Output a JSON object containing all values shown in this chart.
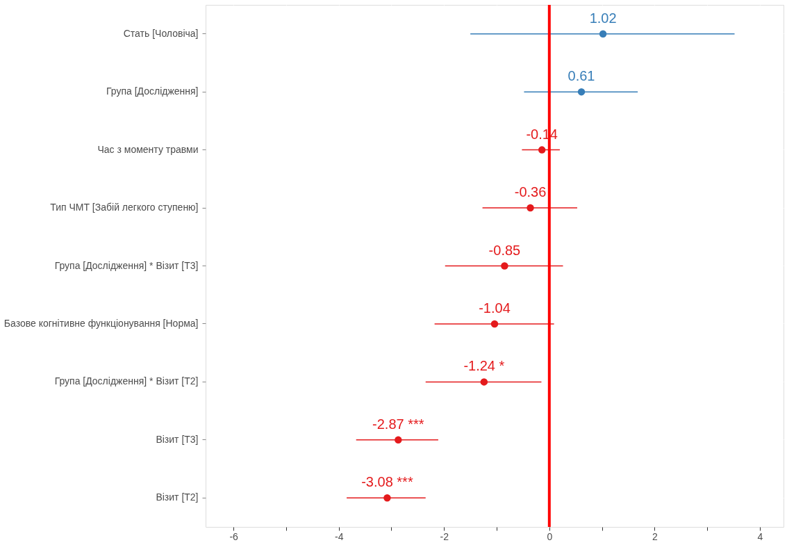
{
  "chart_data": {
    "type": "scatter",
    "orientation": "horizontal",
    "categories": [
      "Стать [Чоловіча]",
      "Група [Дослідження]",
      "Час з моменту травми",
      "Тип ЧМТ [Забій легкого ступеню]",
      "Група [Дослідження] * Візит [T3]",
      "Базове когнітивне функціонування [Норма]",
      "Група [Дослідження] * Візит [T2]",
      "Візит [T3]",
      "Візит [T2]"
    ],
    "values": [
      1.02,
      0.61,
      -0.14,
      -0.36,
      -0.85,
      -1.04,
      -1.24,
      -2.87,
      -3.08
    ],
    "colors": [
      "#377eb8",
      "#377eb8",
      "#e41a1c",
      "#e41a1c",
      "#e41a1c",
      "#e41a1c",
      "#e41a1c",
      "#e41a1c",
      "#e41a1c"
    ],
    "errors": [
      [
        -1.5,
        3.52
      ],
      [
        -0.48,
        1.68
      ],
      [
        -0.52,
        0.2
      ],
      [
        -1.27,
        0.53
      ],
      [
        -1.98,
        0.26
      ],
      [
        -2.18,
        0.09
      ],
      [
        -2.35,
        -0.15
      ],
      [
        -3.67,
        -2.11
      ],
      [
        -3.85,
        -2.35
      ]
    ],
    "value_labels": [
      "1.02",
      "0.61",
      "-0.14",
      "-0.36",
      "-0.85",
      "-1.04",
      "-1.24 *",
      "-2.87 ***",
      "-3.08 ***"
    ],
    "xlim": [
      -6.53,
      4.45
    ],
    "xticks": [
      -6,
      {
        "value": -5,
        "label": null
      },
      -4,
      {
        "value": -3,
        "label": null
      },
      -2,
      {
        "value": -1,
        "label": null
      },
      0,
      {
        "value": 1,
        "label": null
      },
      2,
      {
        "value": 3,
        "label": null
      },
      4
    ],
    "ref_lines": [
      {
        "axis": "x",
        "value": 0,
        "color": "#ff0000"
      }
    ],
    "grid": true,
    "marker": "circle"
  }
}
